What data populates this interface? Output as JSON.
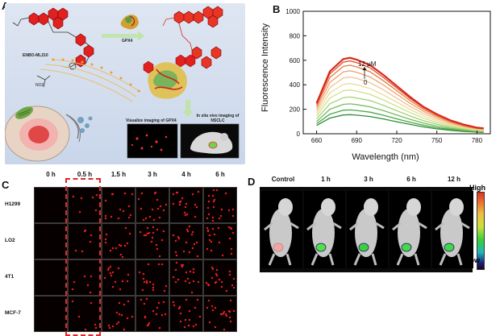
{
  "panels": {
    "a": {
      "letter": "A",
      "gpx4_label": "GPX4",
      "probe_label": "ENBO-ML210",
      "visualize_label": "Visualize imaging of GPX4",
      "in_situ_label": "In situ vivo imaging of NSCLC"
    },
    "b": {
      "letter": "B"
    },
    "c": {
      "letter": "C",
      "columns": [
        "0 h",
        "0.5 h",
        "1.5 h",
        "3 h",
        "4 h",
        "6 h"
      ],
      "rows": [
        "H1299",
        "LO2",
        "4T1",
        "MCF-7"
      ]
    },
    "d": {
      "letter": "D",
      "columns": [
        "Control",
        "1 h",
        "3 h",
        "6 h",
        "12 h"
      ],
      "scale_high": "High",
      "scale_low": "Low"
    }
  },
  "chart_data": {
    "type": "line",
    "title": "",
    "xlabel": "Wavelength (nm)",
    "ylabel": "Fluorescence Intensity",
    "xlim": [
      650,
      790
    ],
    "ylim": [
      0,
      1000
    ],
    "x_ticks": [
      660,
      690,
      720,
      750,
      780
    ],
    "y_ticks": [
      0,
      200,
      400,
      600,
      800,
      1000
    ],
    "annotation_top": "12 μM",
    "annotation_bottom": "0",
    "x": [
      660,
      670,
      680,
      685,
      690,
      700,
      710,
      720,
      730,
      740,
      750,
      760,
      770,
      780,
      785
    ],
    "series": [
      {
        "color": "#d72a1e",
        "values": [
          250,
          510,
          610,
          620,
          605,
          560,
          480,
          390,
          300,
          220,
          160,
          110,
          75,
          50,
          45
        ]
      },
      {
        "color": "#e0502a",
        "values": [
          240,
          490,
          585,
          595,
          580,
          538,
          460,
          374,
          288,
          212,
          154,
          106,
          72,
          48,
          43
        ]
      },
      {
        "color": "#e77a44",
        "values": [
          225,
          460,
          550,
          560,
          546,
          506,
          433,
          352,
          271,
          199,
          145,
          100,
          68,
          45,
          40
        ]
      },
      {
        "color": "#eea16a",
        "values": [
          205,
          420,
          505,
          514,
          501,
          464,
          398,
          323,
          249,
          183,
          133,
          92,
          62,
          42,
          37
        ]
      },
      {
        "color": "#f0c394",
        "values": [
          185,
          378,
          455,
          463,
          452,
          418,
          358,
          291,
          224,
          165,
          120,
          83,
          56,
          38,
          34
        ]
      },
      {
        "color": "#eadc9a",
        "values": [
          165,
          335,
          403,
          410,
          400,
          370,
          317,
          258,
          198,
          146,
          106,
          73,
          50,
          33,
          30
        ]
      },
      {
        "color": "#cfe08a",
        "values": [
          145,
          292,
          351,
          357,
          348,
          322,
          276,
          224,
          173,
          127,
          92,
          64,
          44,
          29,
          26
        ]
      },
      {
        "color": "#a5d177",
        "values": [
          122,
          245,
          295,
          300,
          292,
          271,
          232,
          188,
          145,
          107,
          78,
          54,
          37,
          25,
          22
        ]
      },
      {
        "color": "#75bb5e",
        "values": [
          100,
          200,
          240,
          244,
          238,
          220,
          189,
          153,
          118,
          87,
          63,
          44,
          30,
          20,
          18
        ]
      },
      {
        "color": "#4aa446",
        "values": [
          82,
          160,
          192,
          195,
          190,
          176,
          151,
          122,
          94,
          70,
          50,
          35,
          24,
          16,
          14
        ]
      },
      {
        "color": "#2d8e33",
        "values": [
          68,
          128,
          153,
          156,
          152,
          141,
          121,
          98,
          76,
          56,
          40,
          28,
          19,
          13,
          11
        ]
      }
    ]
  }
}
